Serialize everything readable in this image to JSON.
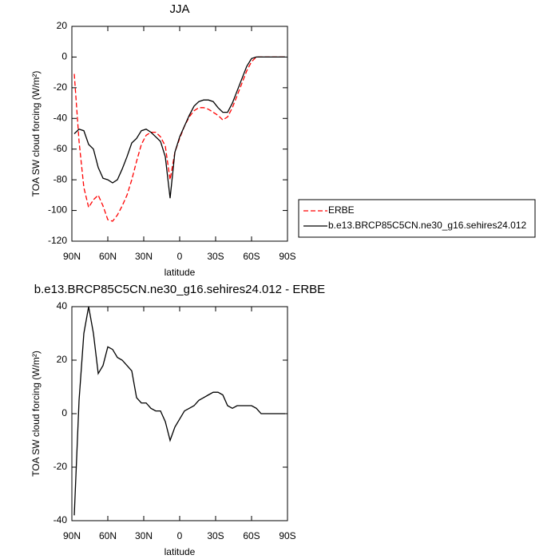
{
  "chart_data": [
    {
      "type": "line",
      "title": "JJA",
      "xlabel": "latitude",
      "ylabel": "TOA SW cloud forcing (W/m²)",
      "x": [
        88,
        84,
        80,
        76,
        72,
        68,
        64,
        60,
        56,
        52,
        48,
        44,
        40,
        36,
        32,
        28,
        24,
        20,
        16,
        12,
        8,
        4,
        0,
        -4,
        -8,
        -12,
        -16,
        -20,
        -24,
        -28,
        -32,
        -36,
        -40,
        -44,
        -48,
        -52,
        -56,
        -60,
        -64,
        -68,
        -72,
        -76,
        -80,
        -84,
        -88
      ],
      "series": [
        {
          "name": "ERBE",
          "color": "#ff0000",
          "linestyle": "dashed",
          "values": [
            -11,
            -55,
            -85,
            -98,
            -93,
            -90,
            -97,
            -106,
            -107,
            -103,
            -97,
            -90,
            -80,
            -68,
            -57,
            -51,
            -49,
            -49,
            -52,
            -58,
            -80,
            -62,
            -53,
            -45,
            -39,
            -35,
            -33,
            -33,
            -34,
            -36,
            -38,
            -41,
            -39,
            -33,
            -25,
            -17,
            -9,
            -3,
            0,
            0,
            0,
            0,
            0,
            0,
            0
          ]
        },
        {
          "name": "b.e13.BRCP85C5CN.ne30_g16.sehires24.012",
          "color": "#000000",
          "linestyle": "solid",
          "values": [
            -50,
            -47,
            -48,
            -57,
            -60,
            -72,
            -79,
            -80,
            -82,
            -80,
            -73,
            -65,
            -56,
            -53,
            -48,
            -47,
            -49,
            -52,
            -55,
            -65,
            -92,
            -62,
            -52,
            -45,
            -38,
            -32,
            -29,
            -28,
            -28,
            -29,
            -33,
            -36,
            -36,
            -30,
            -22,
            -14,
            -6,
            -1,
            0,
            0,
            0,
            0,
            0,
            0,
            0
          ]
        }
      ],
      "xlim": [
        90,
        -90
      ],
      "xticks": [
        {
          "value": 90,
          "label": "90N"
        },
        {
          "value": 60,
          "label": "60N"
        },
        {
          "value": 30,
          "label": "30N"
        },
        0,
        {
          "value": -30,
          "label": "30S"
        },
        {
          "value": -60,
          "label": "60S"
        },
        {
          "value": -90,
          "label": "90S"
        }
      ],
      "ylim": [
        -120,
        20
      ],
      "yticks": [
        20,
        0,
        -20,
        -40,
        -60,
        -80,
        -100,
        -120
      ]
    },
    {
      "type": "line",
      "title": "b.e13.BRCP85C5CN.ne30_g16.sehires24.012 - ERBE",
      "xlabel": "latitude",
      "ylabel": "TOA SW cloud forcing (W/m²)",
      "x": [
        88,
        84,
        80,
        76,
        72,
        68,
        64,
        60,
        56,
        52,
        48,
        44,
        40,
        36,
        32,
        28,
        24,
        20,
        16,
        12,
        8,
        4,
        0,
        -4,
        -8,
        -12,
        -16,
        -20,
        -24,
        -28,
        -32,
        -36,
        -40,
        -44,
        -48,
        -52,
        -56,
        -60,
        -64,
        -68,
        -72,
        -76,
        -80,
        -84,
        -88
      ],
      "values": [
        -38,
        5,
        30,
        40,
        30,
        15,
        18,
        25,
        24,
        21,
        20,
        18,
        16,
        6,
        4,
        4,
        2,
        1,
        1,
        -3,
        -10,
        -5,
        -2,
        1,
        2,
        3,
        5,
        6,
        7,
        8,
        8,
        7,
        3,
        2,
        3,
        3,
        3,
        3,
        2,
        0,
        0,
        0,
        0,
        0,
        0
      ],
      "color": "#000000",
      "xlim": [
        90,
        -90
      ],
      "xticks": [
        {
          "value": 90,
          "label": "90N"
        },
        {
          "value": 60,
          "label": "60N"
        },
        {
          "value": 30,
          "label": "30N"
        },
        0,
        {
          "value": -30,
          "label": "30S"
        },
        {
          "value": -60,
          "label": "60S"
        },
        {
          "value": -90,
          "label": "90S"
        }
      ],
      "ylim": [
        -40,
        40
      ],
      "yticks": [
        40,
        20,
        0,
        -20,
        -40
      ]
    }
  ]
}
